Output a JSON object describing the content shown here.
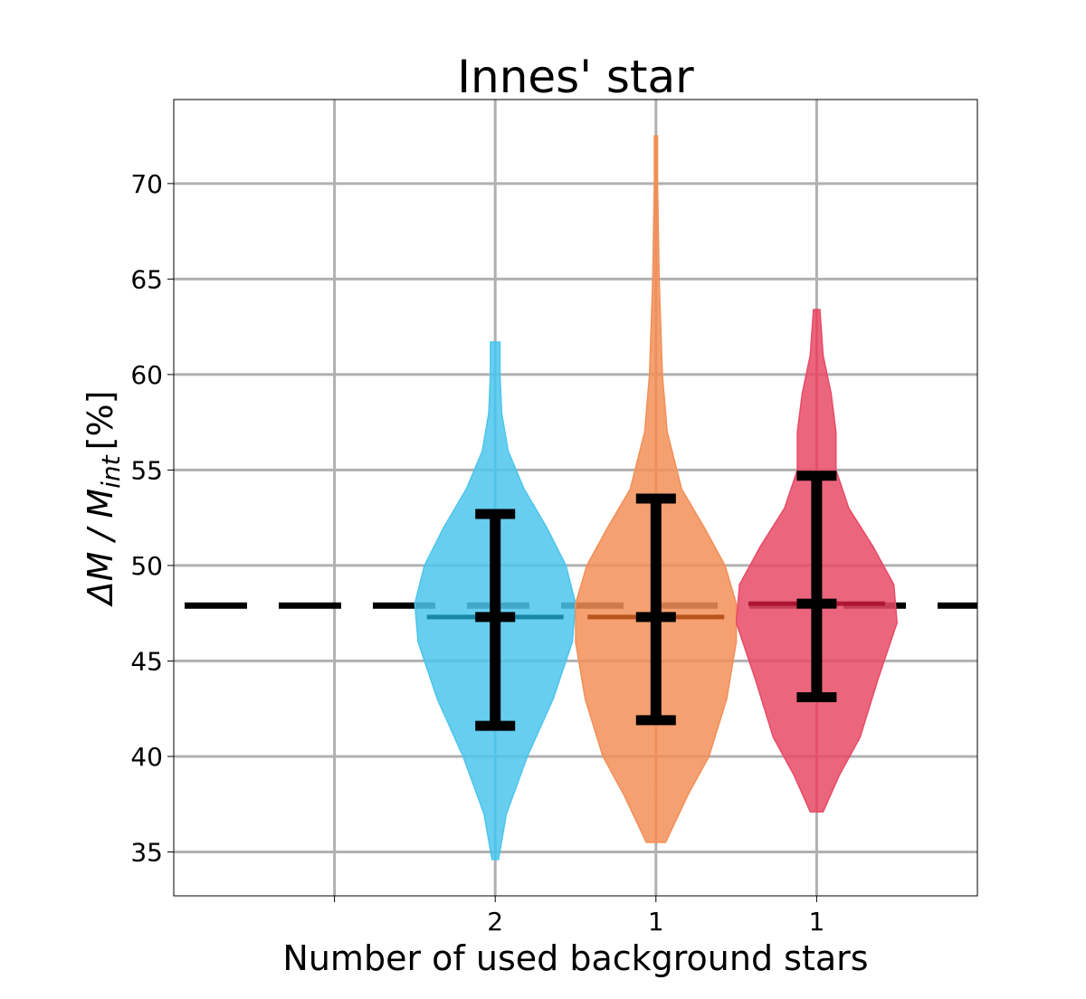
{
  "chart_data": {
    "type": "violin",
    "title": "Innes' star",
    "x_label": "Number of used background stars",
    "y_label": "ΔM / M",
    "y_label_sub": "int",
    "y_label_unit": "[%]",
    "categories": [
      null,
      "2",
      "1",
      "1"
    ],
    "xlim": [
      0,
      5
    ],
    "ylim": [
      32.7,
      74.4
    ],
    "yticks": [
      35,
      40,
      45,
      50,
      55,
      60,
      65,
      70
    ],
    "grid": true,
    "reference": 47.9,
    "violins": [
      {
        "color": "#4cc5ec",
        "median_color": "#0f7fa0",
        "lower": 41.6,
        "median": 47.3,
        "upper": 52.7,
        "profile_y": [
          34.6,
          37,
          40,
          43,
          46,
          48,
          50,
          52,
          54,
          56,
          58,
          60,
          61.7
        ],
        "half_width": [
          0.02,
          0.07,
          0.2,
          0.36,
          0.48,
          0.5,
          0.44,
          0.32,
          0.18,
          0.08,
          0.04,
          0.03,
          0.03
        ]
      },
      {
        "color": "#f28f58",
        "median_color": "#b04a12",
        "lower": 41.9,
        "median": 47.3,
        "upper": 53.5,
        "profile_y": [
          35.5,
          38,
          40,
          43,
          46,
          48,
          50,
          52,
          54,
          57,
          60,
          65,
          70,
          72.5
        ],
        "half_width": [
          0.06,
          0.2,
          0.33,
          0.44,
          0.5,
          0.5,
          0.43,
          0.3,
          0.16,
          0.07,
          0.04,
          0.02,
          0.01,
          0.01
        ]
      },
      {
        "color": "#e84a66",
        "median_color": "#a8102f",
        "lower": 43.1,
        "median": 48.0,
        "upper": 54.7,
        "profile_y": [
          37.1,
          39,
          41,
          44,
          47,
          49,
          51,
          53,
          55,
          57,
          59,
          61,
          63.4
        ],
        "half_width": [
          0.04,
          0.14,
          0.27,
          0.38,
          0.5,
          0.48,
          0.35,
          0.2,
          0.12,
          0.12,
          0.09,
          0.04,
          0.02
        ]
      }
    ]
  }
}
